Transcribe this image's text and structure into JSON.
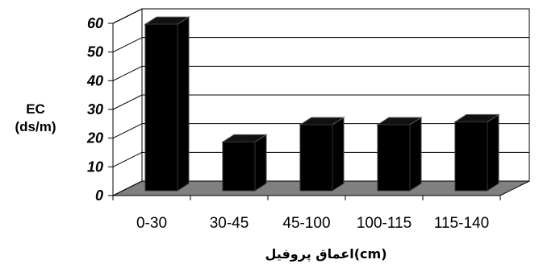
{
  "chart_data": {
    "type": "bar",
    "categories": [
      "0-30",
      "30-45",
      "45-100",
      "100-115",
      "115-140"
    ],
    "values": [
      58,
      17,
      23,
      23,
      24
    ],
    "ylabel_line1": "EC",
    "ylabel_line2": "(ds/m)",
    "xlabel": "اعماق پروفيل(cm)",
    "ylim": [
      0,
      60
    ],
    "yticks": [
      0,
      10,
      20,
      30,
      40,
      50,
      60
    ],
    "grid": true,
    "style": "3d"
  }
}
